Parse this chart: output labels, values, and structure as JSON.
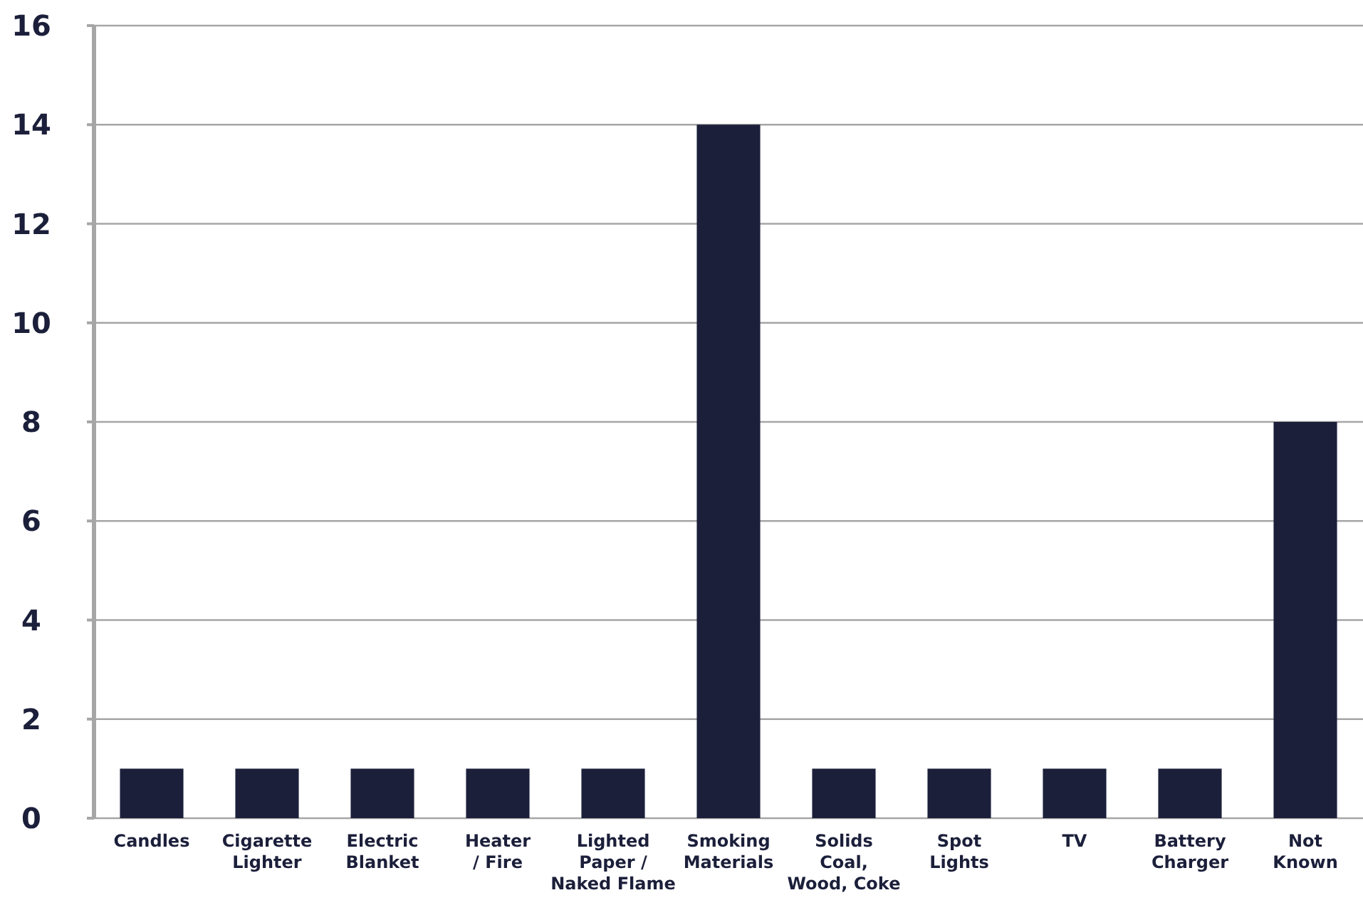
{
  "chart_data": {
    "type": "bar",
    "categories": [
      "Candles",
      "Cigarette\nLighter",
      "Electric\nBlanket",
      "Heater\n/ Fire",
      "Lighted\nPaper /\nNaked Flame",
      "Smoking\nMaterials",
      "Solids\nCoal,\nWood, Coke",
      "Spot\nLights",
      "TV",
      "Battery\nCharger",
      "Not\nKnown"
    ],
    "values": [
      1,
      1,
      1,
      1,
      1,
      14,
      1,
      1,
      1,
      1,
      8
    ],
    "color": "#1b1f3a",
    "ylim": [
      0,
      16
    ],
    "yticks": [
      0,
      2,
      4,
      6,
      8,
      10,
      12,
      14,
      16
    ],
    "grid": "y"
  }
}
